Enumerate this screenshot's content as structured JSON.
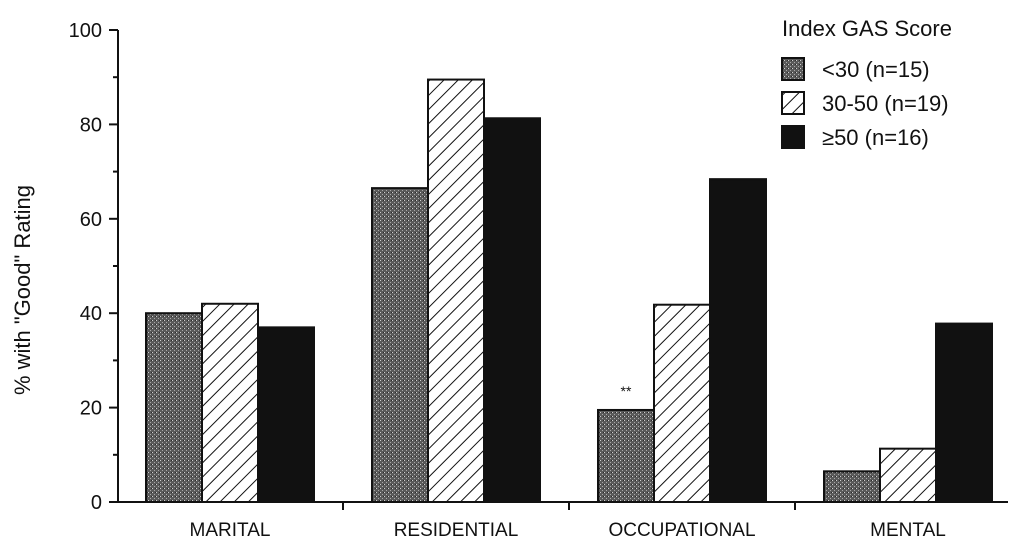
{
  "chart_data": {
    "type": "bar",
    "title": "",
    "xlabel": "",
    "ylabel": "% with \"Good\" Rating",
    "ylim": [
      0,
      100
    ],
    "yticks": [
      0,
      20,
      40,
      60,
      80,
      100
    ],
    "grid": false,
    "legend_title": "Index GAS Score",
    "legend_position": "top-right",
    "categories": [
      "MARITAL",
      "RESIDENTIAL",
      "OCCUPATIONAL",
      "MENTAL"
    ],
    "series": [
      {
        "name": "<30 (n=15)",
        "pattern": "stipple",
        "values": [
          40,
          66.5,
          19.5,
          6.5
        ]
      },
      {
        "name": "30-50 (n=19)",
        "pattern": "hatch",
        "values": [
          42,
          89.5,
          41.8,
          11.3
        ]
      },
      {
        "name": "≥50 (n=16)",
        "pattern": "solid",
        "values": [
          37,
          81.3,
          68.4,
          37.8
        ]
      }
    ],
    "annotations": [
      {
        "text": "**",
        "category": "OCCUPATIONAL",
        "series": 0
      }
    ],
    "colors": {
      "axis": "#111111",
      "solid": "#111111",
      "stipple": "#6e6e6e"
    }
  }
}
